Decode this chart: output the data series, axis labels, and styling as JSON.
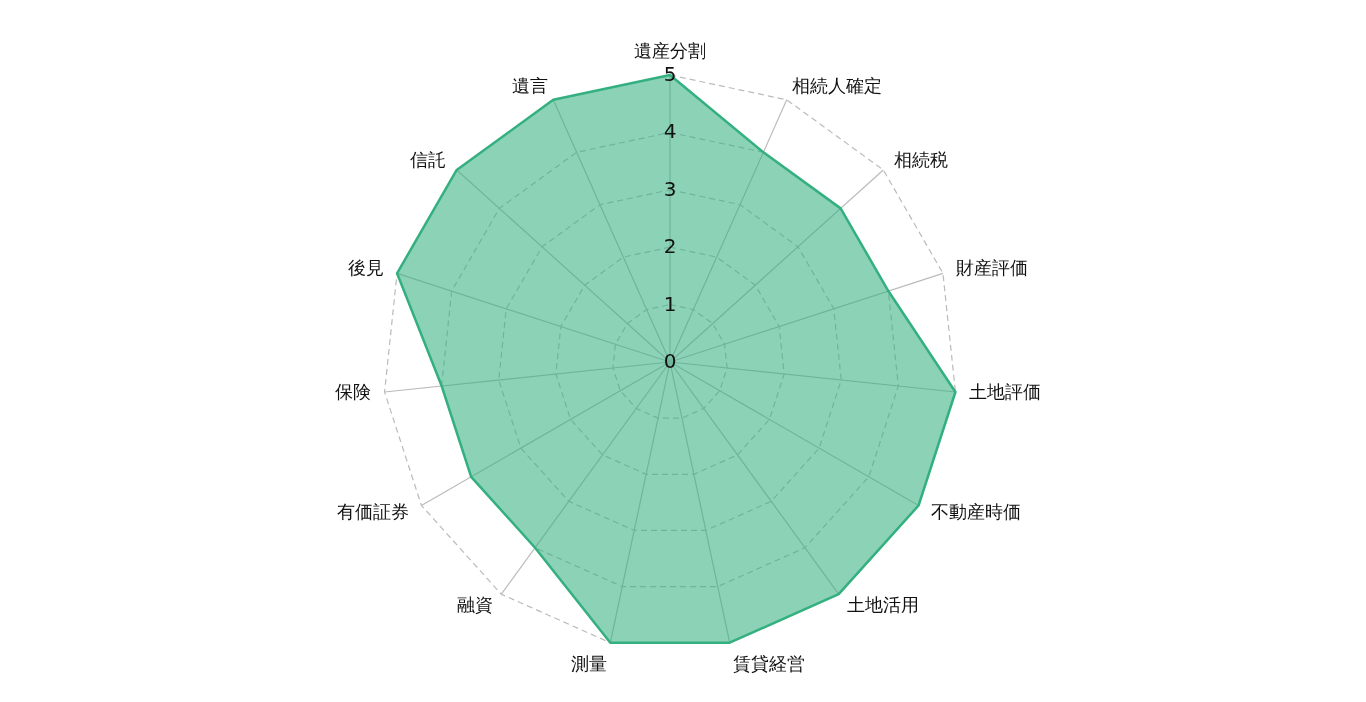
{
  "chart_data": {
    "type": "radar",
    "categories": [
      "遺産分割",
      "相続人確定",
      "相続税",
      "財産評価",
      "土地評価",
      "不動産時価",
      "土地活用",
      "賃貸経営",
      "測量",
      "融資",
      "有価証券",
      "保険",
      "後見",
      "信託",
      "遺言"
    ],
    "series": [
      {
        "color": "#34b080",
        "values": [
          5,
          4,
          4,
          4,
          5,
          5,
          5,
          5,
          5,
          4,
          4,
          4,
          5,
          5,
          5
        ]
      }
    ],
    "ylim": [
      0,
      5
    ],
    "yticks": [
      0,
      1,
      2,
      3,
      4,
      5
    ],
    "grid": true
  }
}
